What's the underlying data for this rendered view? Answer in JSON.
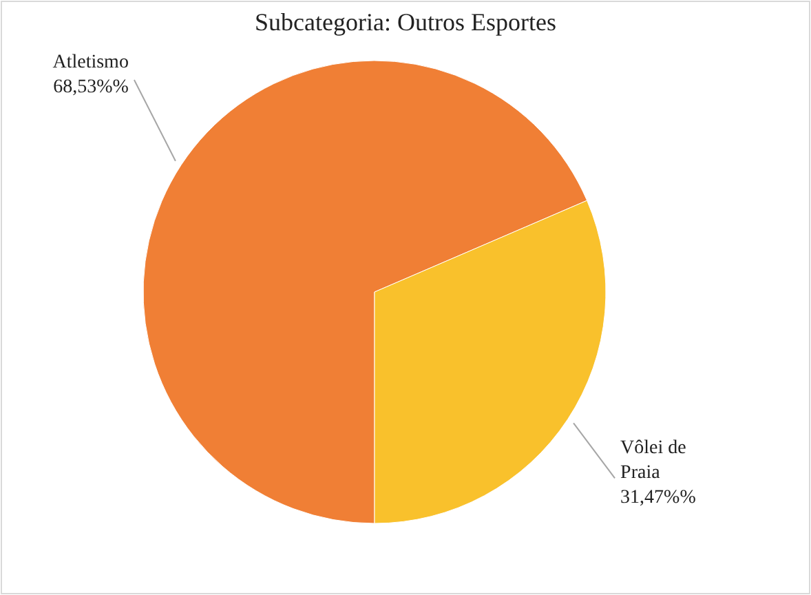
{
  "chart_data": {
    "type": "pie",
    "title": "Subcategoria: Outros Esportes",
    "categories": [
      "Atletismo",
      "Vôlei de Praia"
    ],
    "values": [
      68.53,
      31.47
    ],
    "colors": [
      "#f07f35",
      "#f9c12c"
    ],
    "value_labels": [
      "68,53%%",
      "31,47%%"
    ]
  }
}
